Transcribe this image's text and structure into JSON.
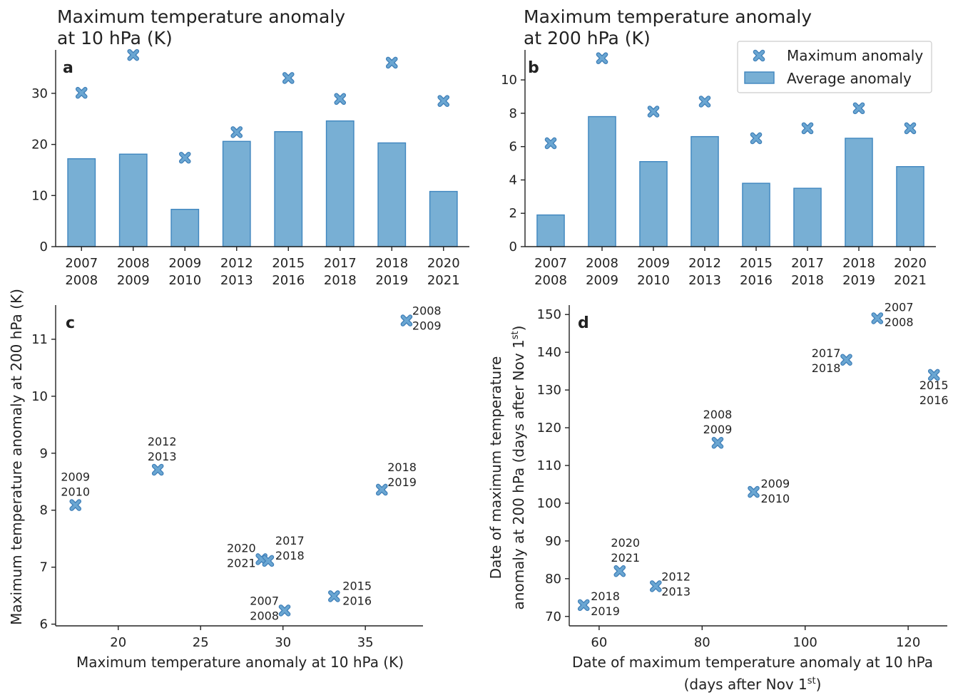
{
  "chart_data": [
    {
      "panel": "a",
      "type": "bar",
      "title": [
        "Maximum temperature anomaly",
        "at 10 hPa (K)"
      ],
      "categories": [
        [
          "2007",
          "2008"
        ],
        [
          "2008",
          "2009"
        ],
        [
          "2009",
          "2010"
        ],
        [
          "2012",
          "2013"
        ],
        [
          "2015",
          "2016"
        ],
        [
          "2017",
          "2018"
        ],
        [
          "2018",
          "2019"
        ],
        [
          "2020",
          "2021"
        ]
      ],
      "series": [
        {
          "name": "Average anomaly",
          "type": "bar",
          "values": [
            17.2,
            18.1,
            7.3,
            20.6,
            22.5,
            24.6,
            20.3,
            10.8
          ]
        },
        {
          "name": "Maximum anomaly",
          "type": "scatter",
          "values": [
            30.1,
            37.5,
            17.4,
            22.4,
            33.0,
            28.9,
            36.0,
            28.5
          ]
        }
      ],
      "ylim": [
        0,
        38.5
      ],
      "yticks": [
        0,
        10,
        20,
        30
      ],
      "xlabel": "",
      "ylabel": "",
      "legend": false
    },
    {
      "panel": "b",
      "type": "bar",
      "title": [
        "Maximum temperature anomaly",
        "at 200 hPa (K)"
      ],
      "categories": [
        [
          "2007",
          "2008"
        ],
        [
          "2008",
          "2009"
        ],
        [
          "2009",
          "2010"
        ],
        [
          "2012",
          "2013"
        ],
        [
          "2015",
          "2016"
        ],
        [
          "2017",
          "2018"
        ],
        [
          "2018",
          "2019"
        ],
        [
          "2020",
          "2021"
        ]
      ],
      "series": [
        {
          "name": "Average anomaly",
          "type": "bar",
          "values": [
            1.9,
            7.8,
            5.1,
            6.6,
            3.8,
            3.5,
            6.5,
            4.8
          ]
        },
        {
          "name": "Maximum anomaly",
          "type": "scatter",
          "values": [
            6.2,
            11.3,
            8.1,
            8.7,
            6.5,
            7.1,
            8.3,
            7.1
          ]
        }
      ],
      "ylim": [
        0,
        11.8
      ],
      "yticks": [
        0,
        2,
        4,
        6,
        8,
        10
      ],
      "xlabel": "",
      "ylabel": "",
      "legend": true,
      "legend_position": "top-right",
      "legend_entries": [
        "Maximum anomaly",
        "Average anomaly"
      ]
    },
    {
      "panel": "c",
      "type": "scatter",
      "xlabel": "Maximum temperature anomaly at 10 hPa (K)",
      "ylabel": "Maximum temperature anomaly at 200 hPa (K)",
      "xlim": [
        16.2,
        38.5
      ],
      "ylim": [
        5.97,
        11.6
      ],
      "xticks": [
        20,
        25,
        30,
        35
      ],
      "yticks": [
        6,
        7,
        8,
        9,
        10,
        11
      ],
      "points": [
        {
          "x": 17.4,
          "y": 8.09,
          "label": [
            "2009",
            "2010"
          ]
        },
        {
          "x": 22.4,
          "y": 8.71,
          "label": [
            "2012",
            "2013"
          ]
        },
        {
          "x": 37.5,
          "y": 11.33,
          "label": [
            "2008",
            "2009"
          ]
        },
        {
          "x": 36.0,
          "y": 8.36,
          "label": [
            "2018",
            "2019"
          ]
        },
        {
          "x": 28.7,
          "y": 7.14,
          "label": [
            "2020",
            "2021"
          ]
        },
        {
          "x": 29.1,
          "y": 7.11,
          "label": [
            "2017",
            "2018"
          ]
        },
        {
          "x": 30.1,
          "y": 6.24,
          "label": [
            "2007",
            "2008"
          ]
        },
        {
          "x": 33.1,
          "y": 6.49,
          "label": [
            "2015",
            "2016"
          ]
        }
      ]
    },
    {
      "panel": "d",
      "type": "scatter",
      "xlabel": [
        "Date of maximum temperature anomaly at 10 hPa",
        "(days after Nov 1",
        "st",
        ")"
      ],
      "ylabel": [
        "Date of maximum temperature",
        "anomaly at 200 hPa (days after Nov 1",
        "st",
        ")"
      ],
      "xlim": [
        54.2,
        127.6
      ],
      "ylim": [
        67.5,
        152.5
      ],
      "xticks": [
        60,
        80,
        100,
        120
      ],
      "yticks": [
        70,
        80,
        90,
        100,
        110,
        120,
        130,
        140,
        150
      ],
      "points": [
        {
          "x": 57,
          "y": 73,
          "label": [
            "2018",
            "2019"
          ]
        },
        {
          "x": 64,
          "y": 82,
          "label": [
            "2020",
            "2021"
          ]
        },
        {
          "x": 71,
          "y": 78,
          "label": [
            "2012",
            "2013"
          ]
        },
        {
          "x": 83,
          "y": 116,
          "label": [
            "2008",
            "2009"
          ]
        },
        {
          "x": 90,
          "y": 103,
          "label": [
            "2009",
            "2010"
          ]
        },
        {
          "x": 108,
          "y": 138,
          "label": [
            "2017",
            "2018"
          ]
        },
        {
          "x": 114,
          "y": 149,
          "label": [
            "2007",
            "2008"
          ]
        },
        {
          "x": 125,
          "y": 134,
          "label": [
            "2015",
            "2016"
          ]
        }
      ]
    }
  ],
  "colors": {
    "bar_fill": "#78afd4",
    "bar_edge": "#3f86bf",
    "marker_fill": "#6aa6d2",
    "marker_edge": "#3f7fb8",
    "axis": "#222222"
  }
}
